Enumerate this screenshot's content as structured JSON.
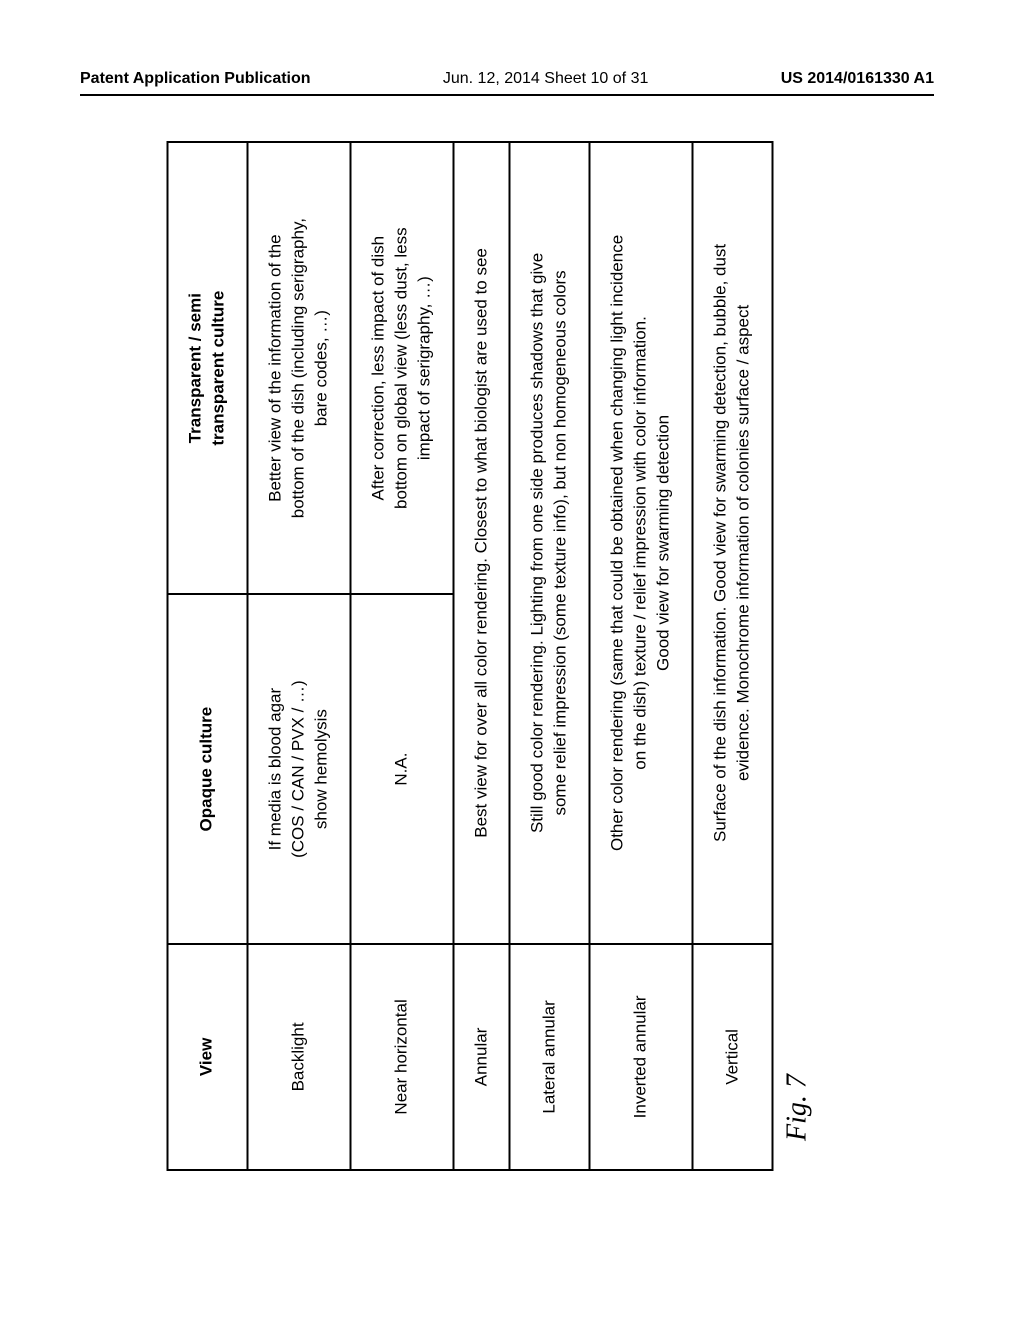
{
  "header": {
    "left": "Patent Application Publication",
    "center": "Jun. 12, 2014  Sheet 10 of 31",
    "right": "US 2014/0161330 A1"
  },
  "figure_label": "Fig. 7",
  "table": {
    "columns": [
      "View",
      "Opaque culture",
      "Transparent / semi\ntransparent culture"
    ],
    "rows": [
      {
        "view": "Backlight",
        "opaque": "If media is blood agar\n(COS / CAN / PVX / …)\nshow hemolysis",
        "transparent": "Better view of the information of the\nbottom of the dish (including serigraphy,\nbare codes, …)"
      },
      {
        "view": "Near horizontal",
        "opaque": "N.A.",
        "transparent": "After correction, less impact of dish\nbottom on global view (less dust, less\nimpact of serigraphy, …)"
      },
      {
        "view": "Annular",
        "merged": "Best view for over all color rendering. Closest to what biologist are used to see"
      },
      {
        "view": "Lateral annular",
        "merged": "Still good color rendering. Lighting from one side produces shadows that give\nsome relief impression (some texture info), but non homogeneous colors"
      },
      {
        "view": "Inverted annular",
        "merged": "Other color rendering (same that could be obtained when changing light incidence\non the dish) texture / relief impression with color information.\nGood view for swarming detection"
      },
      {
        "view": "Vertical",
        "merged": "Surface of the dish information. Good view for swarming detection, bubble, dust\nevidence. Monochrome information of colonies surface / aspect"
      }
    ]
  }
}
